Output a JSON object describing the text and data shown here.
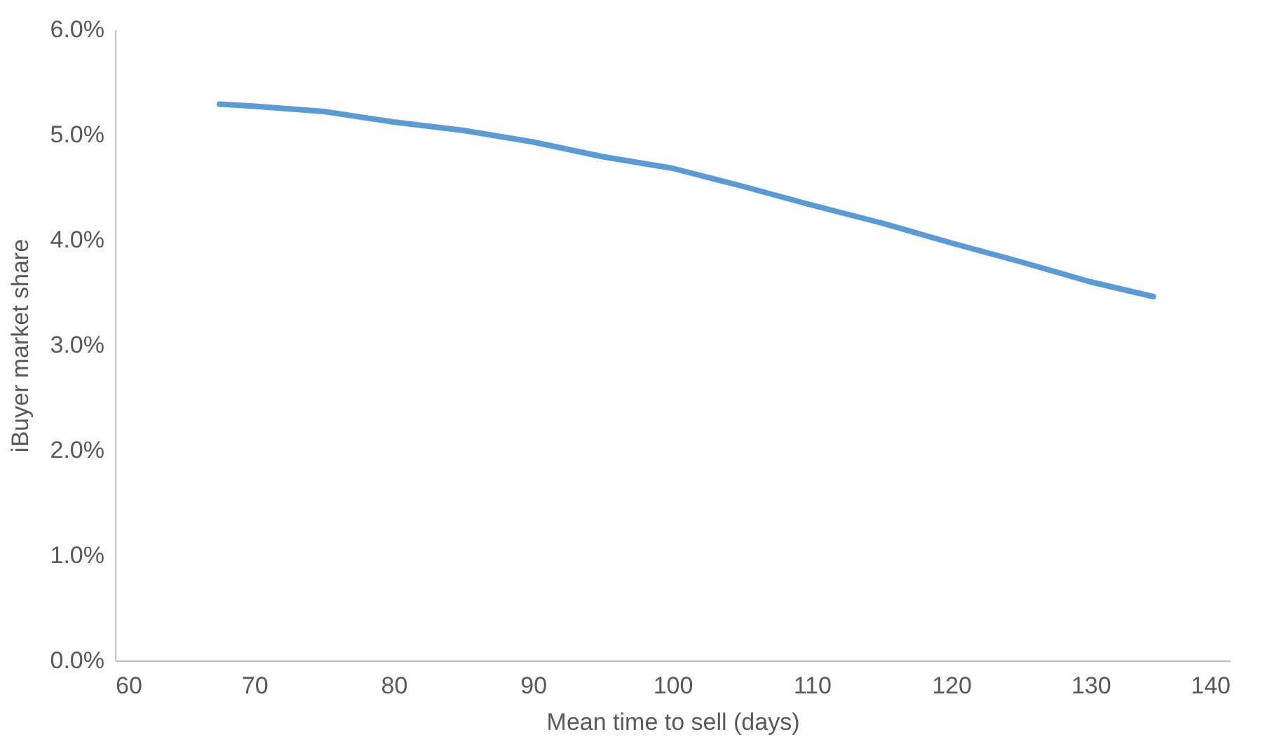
{
  "chart_data": {
    "type": "line",
    "xlabel": "Mean time to sell (days)",
    "ylabel": "iBuyer market share",
    "x": [
      67.5,
      70,
      75,
      80,
      85,
      90,
      95,
      100,
      105,
      110,
      115,
      120,
      125,
      130,
      134.5
    ],
    "series": [
      {
        "color": "#5b9bd5",
        "values": [
          5.29,
          5.27,
          5.22,
          5.12,
          5.04,
          4.93,
          4.79,
          4.68,
          4.51,
          4.33,
          4.16,
          3.97,
          3.79,
          3.6,
          3.46
        ]
      }
    ],
    "xlim": [
      60,
      140
    ],
    "xticks": [
      60,
      70,
      80,
      90,
      100,
      110,
      120,
      130,
      140
    ],
    "ylim": [
      0,
      6
    ],
    "yticks": [
      {
        "value": 0,
        "label": "0.0%"
      },
      {
        "value": 1,
        "label": "1.0%"
      },
      {
        "value": 2,
        "label": "2.0%"
      },
      {
        "value": 3,
        "label": "3.0%"
      },
      {
        "value": 4,
        "label": "4.0%"
      },
      {
        "value": 5,
        "label": "5.0%"
      },
      {
        "value": 6,
        "label": "6.0%"
      }
    ],
    "grid": false,
    "marker": "none",
    "line_style": "solid"
  }
}
